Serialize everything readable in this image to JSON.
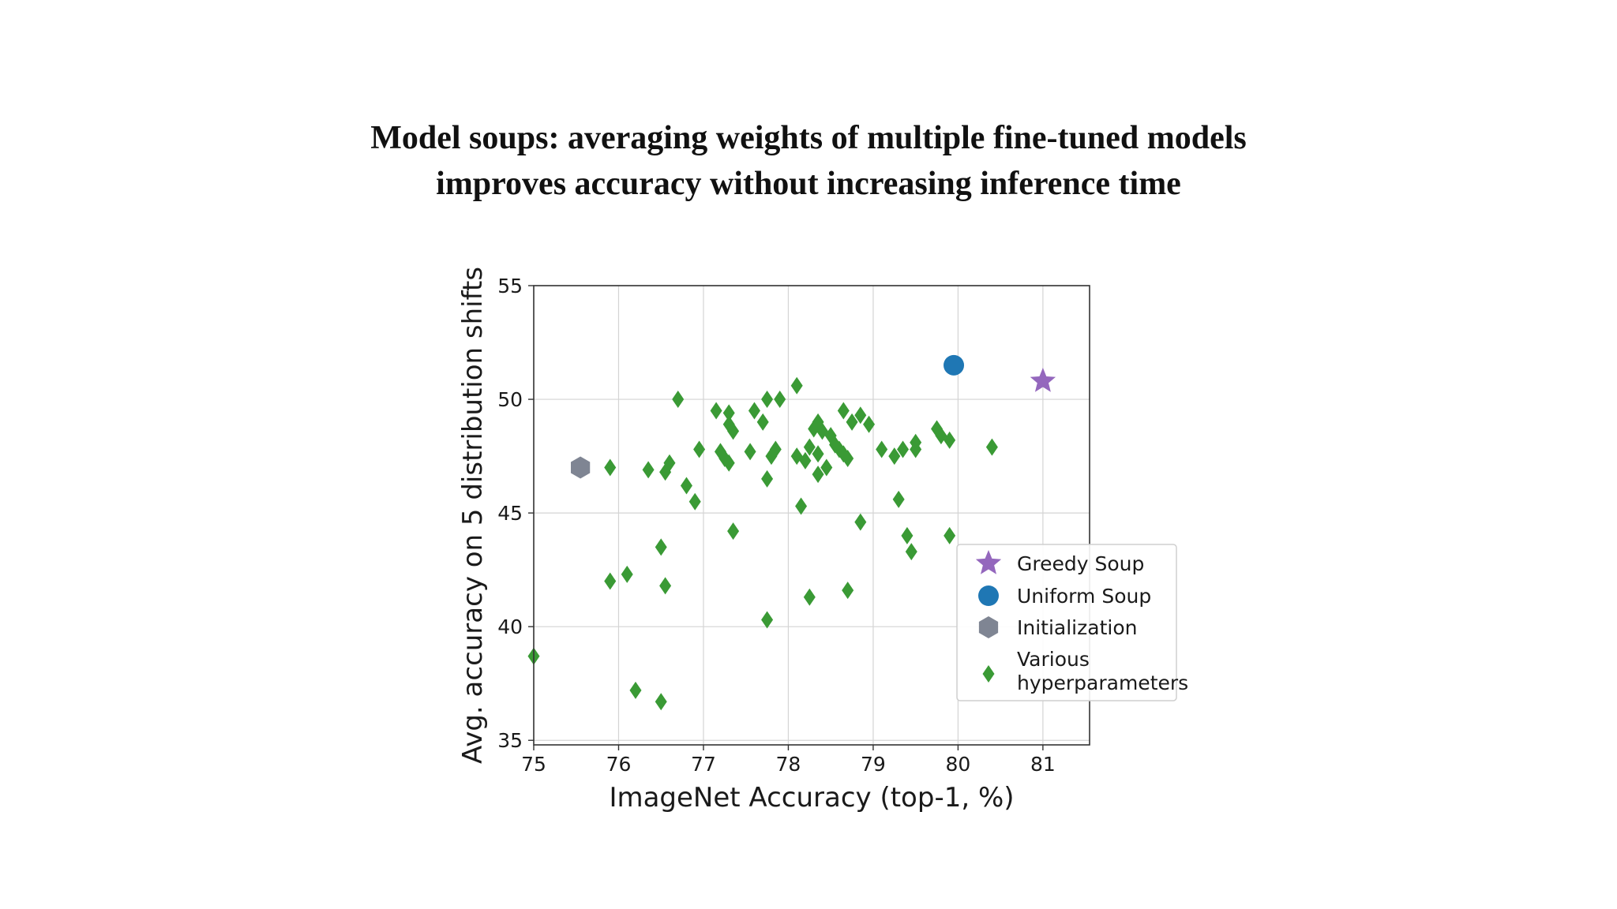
{
  "title": {
    "line1": "Model soups: averaging weights of multiple fine-tuned models",
    "line2": "improves accuracy without increasing inference time"
  },
  "chart_data": {
    "type": "scatter",
    "xlabel": "ImageNet Accuracy (top-1, %)",
    "ylabel": "Avg. accuracy on 5 distribution shifts",
    "xlim": [
      75,
      81.55
    ],
    "ylim": [
      34.8,
      55
    ],
    "xticks": [
      "75",
      "76",
      "77",
      "78",
      "79",
      "80",
      "81"
    ],
    "yticks": [
      "35",
      "40",
      "45",
      "50",
      "55"
    ],
    "grid": true,
    "legend_position": "lower-right",
    "series": [
      {
        "name": "Greedy Soup",
        "marker": "star",
        "color": "#9467bd",
        "points": [
          [
            81.0,
            50.8
          ]
        ]
      },
      {
        "name": "Uniform Soup",
        "marker": "circle",
        "color": "#1f77b4",
        "points": [
          [
            79.95,
            51.5
          ]
        ]
      },
      {
        "name": "Initialization",
        "marker": "hexagon",
        "color": "#7f8593",
        "points": [
          [
            75.55,
            47.0
          ]
        ]
      },
      {
        "name": "Various hyperparameters",
        "marker": "diamond",
        "color": "#3a9a35",
        "points": [
          [
            75.0,
            38.7
          ],
          [
            75.9,
            47.0
          ],
          [
            75.9,
            42.0
          ],
          [
            76.1,
            42.3
          ],
          [
            76.2,
            37.2
          ],
          [
            76.35,
            46.9
          ],
          [
            76.5,
            43.5
          ],
          [
            76.5,
            36.7
          ],
          [
            76.55,
            41.8
          ],
          [
            76.55,
            46.8
          ],
          [
            76.6,
            47.2
          ],
          [
            76.7,
            50.0
          ],
          [
            76.8,
            46.2
          ],
          [
            76.9,
            45.5
          ],
          [
            76.95,
            47.8
          ],
          [
            77.15,
            49.5
          ],
          [
            77.2,
            47.7
          ],
          [
            77.25,
            47.4
          ],
          [
            77.3,
            49.4
          ],
          [
            77.3,
            48.9
          ],
          [
            77.35,
            48.6
          ],
          [
            77.3,
            47.2
          ],
          [
            77.35,
            44.2
          ],
          [
            77.55,
            47.7
          ],
          [
            77.6,
            49.5
          ],
          [
            77.7,
            49.0
          ],
          [
            77.75,
            50.0
          ],
          [
            77.75,
            46.5
          ],
          [
            77.8,
            47.5
          ],
          [
            77.85,
            47.8
          ],
          [
            77.75,
            40.3
          ],
          [
            77.9,
            50.0
          ],
          [
            78.1,
            50.6
          ],
          [
            78.1,
            47.5
          ],
          [
            78.15,
            45.3
          ],
          [
            78.2,
            47.3
          ],
          [
            78.25,
            41.3
          ],
          [
            78.25,
            47.9
          ],
          [
            78.3,
            48.7
          ],
          [
            78.35,
            49.0
          ],
          [
            78.35,
            47.6
          ],
          [
            78.35,
            46.7
          ],
          [
            78.4,
            48.6
          ],
          [
            78.45,
            47.0
          ],
          [
            78.5,
            48.4
          ],
          [
            78.55,
            48.0
          ],
          [
            78.6,
            47.8
          ],
          [
            78.65,
            49.5
          ],
          [
            78.65,
            47.6
          ],
          [
            78.7,
            47.4
          ],
          [
            78.7,
            41.6
          ],
          [
            78.75,
            49.0
          ],
          [
            78.85,
            49.3
          ],
          [
            78.85,
            44.6
          ],
          [
            78.95,
            48.9
          ],
          [
            79.1,
            47.8
          ],
          [
            79.25,
            47.5
          ],
          [
            79.3,
            45.6
          ],
          [
            79.35,
            47.8
          ],
          [
            79.4,
            44.0
          ],
          [
            79.45,
            43.3
          ],
          [
            79.5,
            48.1
          ],
          [
            79.5,
            47.8
          ],
          [
            79.75,
            48.7
          ],
          [
            79.8,
            48.4
          ],
          [
            79.9,
            48.2
          ],
          [
            79.9,
            44.0
          ],
          [
            80.4,
            47.9
          ]
        ]
      }
    ],
    "legend": {
      "greedy": "Greedy Soup",
      "uniform": "Uniform Soup",
      "init": "Initialization",
      "various_line1": "Various",
      "various_line2": "hyperparameters"
    }
  }
}
